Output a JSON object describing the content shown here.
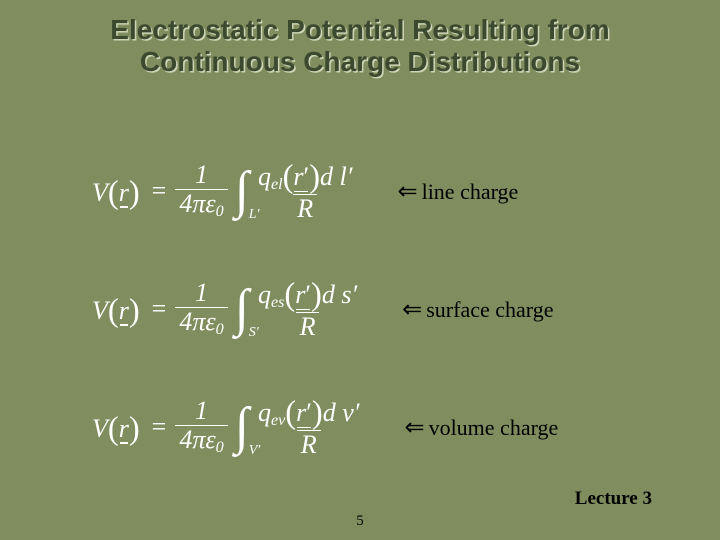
{
  "background_color": "#808d5f",
  "title": {
    "line1": "Electrostatic Potential Resulting from",
    "line2": "Continuous Charge Distributions",
    "color": "#3b4a2e",
    "shadow_color": "#cdd4b6",
    "fontsize": 28
  },
  "equation_color": "#ffffff",
  "label_color": "#000000",
  "arrow_glyph": "⇐",
  "equations": [
    {
      "lhs_var": "V",
      "lhs_arg": "r",
      "const_num": "1",
      "const_den_pre": "4πε",
      "const_den_sub": "0",
      "int_sub": "L′",
      "q_sym": "q",
      "q_sub": "el",
      "q_arg": "r",
      "diff": "d l′",
      "denom": "R",
      "label": "line charge"
    },
    {
      "lhs_var": "V",
      "lhs_arg": "r",
      "const_num": "1",
      "const_den_pre": "4πε",
      "const_den_sub": "0",
      "int_sub": "S′",
      "q_sym": "q",
      "q_sub": "es",
      "q_arg": "r",
      "diff": "d s′",
      "denom": "R",
      "label": "surface charge"
    },
    {
      "lhs_var": "V",
      "lhs_arg": "r",
      "const_num": "1",
      "const_den_pre": "4πε",
      "const_den_sub": "0",
      "int_sub": "V′",
      "q_sym": "q",
      "q_sub": "ev",
      "q_arg": "r",
      "diff": "d v′",
      "denom": "R",
      "label": "volume charge"
    }
  ],
  "lecture_label": "Lecture 3",
  "page_number": "5"
}
